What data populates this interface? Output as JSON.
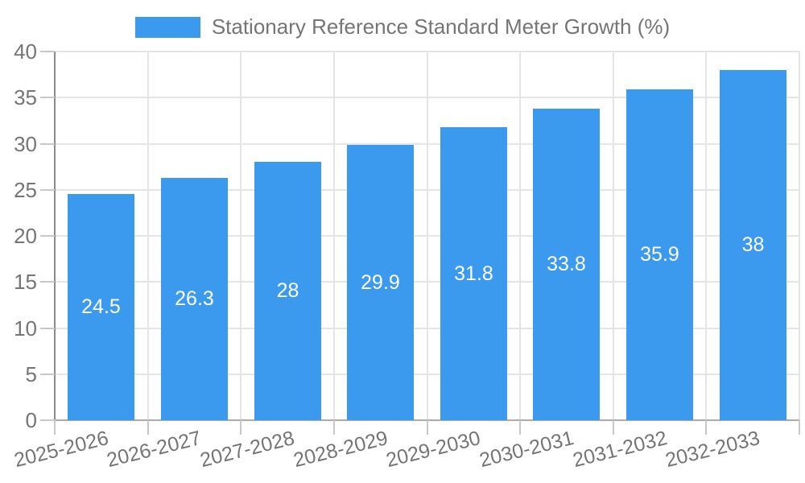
{
  "chart_data": {
    "type": "bar",
    "title": "Stationary Reference Standard Meter Growth (%)",
    "categories": [
      "2025-2026",
      "2026-2027",
      "2027-2028",
      "2028-2029",
      "2029-2030",
      "2030-2031",
      "2031-2032",
      "2032-2033"
    ],
    "values": [
      24.5,
      26.3,
      28,
      29.9,
      31.8,
      33.8,
      35.9,
      38
    ],
    "bar_labels": [
      "24.5",
      "26.3",
      "28",
      "29.9",
      "31.8",
      "33.8",
      "35.9",
      "38"
    ],
    "xlabel": "",
    "ylabel": "",
    "ylim": [
      0,
      40
    ],
    "ytick_step": 5,
    "ytick_labels": [
      "0",
      "5",
      "10",
      "15",
      "20",
      "25",
      "30",
      "35",
      "40"
    ],
    "grid": "on",
    "legend_position": "top-center",
    "colors": {
      "bar": "#3b99ee",
      "bar_label_text": "#ffffff",
      "axis_text": "#757575",
      "legend_text": "#757575",
      "gridline": "#e5e5e5",
      "y_axis_line": "#8a8a8a",
      "x_axis_line": "#ababab",
      "tick": "#c9c9c9",
      "background": "#ffffff"
    }
  }
}
